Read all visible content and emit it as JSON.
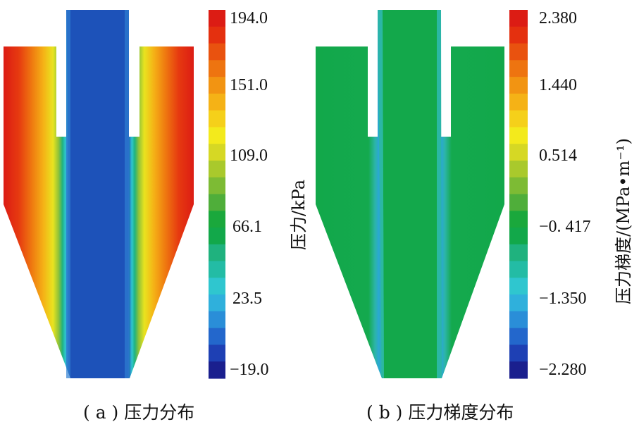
{
  "panels": [
    {
      "id": "a",
      "caption": "( a ) 压力分布",
      "unit_label": "压力/kPa",
      "colorbar_ticks": [
        "194.0",
        "151.0",
        "109.0",
        "66.1",
        "23.5",
        "−19.0"
      ]
    },
    {
      "id": "b",
      "caption": "( b ) 压力梯度分布",
      "unit_label": "压力梯度/(MPa•m⁻¹)",
      "colorbar_ticks": [
        "2.380",
        "1.440",
        "0.514",
        "−0. 417",
        "−1.350",
        "−2.280"
      ]
    }
  ],
  "colorbar_colors": [
    "#1a1f8e",
    "#1e40b4",
    "#2367cc",
    "#2a8ed8",
    "#2fb0dc",
    "#2fc6cf",
    "#23bca5",
    "#1fb27e",
    "#12a84a",
    "#1aa83c",
    "#4fae3a",
    "#7dbb34",
    "#a9c92c",
    "#d6d824",
    "#f3ea1c",
    "#f5d01a",
    "#f5b216",
    "#f29412",
    "#ee7410",
    "#e9520f",
    "#e4300f",
    "#dc1c14"
  ]
}
